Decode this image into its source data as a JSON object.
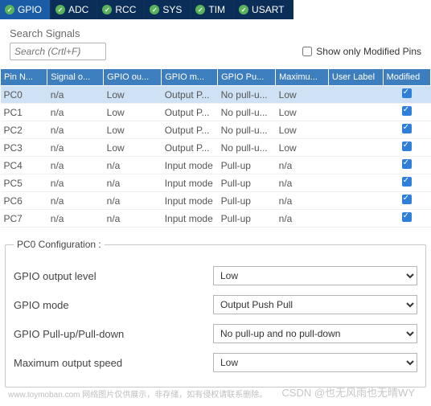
{
  "tabs": {
    "items": [
      {
        "label": "GPIO",
        "active": true
      },
      {
        "label": "ADC",
        "active": false
      },
      {
        "label": "RCC",
        "active": false
      },
      {
        "label": "SYS",
        "active": false
      },
      {
        "label": "TIM",
        "active": false
      },
      {
        "label": "USART",
        "active": false
      }
    ]
  },
  "search": {
    "label": "Search Signals",
    "placeholder": "Search (Crtl+F)",
    "show_only_label": "Show only Modified Pins",
    "show_only_checked": false
  },
  "table": {
    "columns": [
      "Pin N...",
      "Signal o...",
      "GPIO ou...",
      "GPIO m...",
      "GPIO Pu...",
      "Maximu...",
      "User Label",
      "Modified"
    ],
    "rows": [
      {
        "pin": "PC0",
        "signal": "n/a",
        "out": "Low",
        "mode": "Output P...",
        "pull": "No pull-u...",
        "max": "Low",
        "user": "",
        "modified": true,
        "selected": true
      },
      {
        "pin": "PC1",
        "signal": "n/a",
        "out": "Low",
        "mode": "Output P...",
        "pull": "No pull-u...",
        "max": "Low",
        "user": "",
        "modified": true,
        "selected": false
      },
      {
        "pin": "PC2",
        "signal": "n/a",
        "out": "Low",
        "mode": "Output P...",
        "pull": "No pull-u...",
        "max": "Low",
        "user": "",
        "modified": true,
        "selected": false
      },
      {
        "pin": "PC3",
        "signal": "n/a",
        "out": "Low",
        "mode": "Output P...",
        "pull": "No pull-u...",
        "max": "Low",
        "user": "",
        "modified": true,
        "selected": false
      },
      {
        "pin": "PC4",
        "signal": "n/a",
        "out": "n/a",
        "mode": "Input mode",
        "pull": "Pull-up",
        "max": "n/a",
        "user": "",
        "modified": true,
        "selected": false
      },
      {
        "pin": "PC5",
        "signal": "n/a",
        "out": "n/a",
        "mode": "Input mode",
        "pull": "Pull-up",
        "max": "n/a",
        "user": "",
        "modified": true,
        "selected": false
      },
      {
        "pin": "PC6",
        "signal": "n/a",
        "out": "n/a",
        "mode": "Input mode",
        "pull": "Pull-up",
        "max": "n/a",
        "user": "",
        "modified": true,
        "selected": false
      },
      {
        "pin": "PC7",
        "signal": "n/a",
        "out": "n/a",
        "mode": "Input mode",
        "pull": "Pull-up",
        "max": "n/a",
        "user": "",
        "modified": true,
        "selected": false
      }
    ]
  },
  "config": {
    "legend": "PC0 Configuration :",
    "fields": [
      {
        "label": "GPIO output level",
        "value": "Low"
      },
      {
        "label": "GPIO mode",
        "value": "Output Push Pull"
      },
      {
        "label": "GPIO Pull-up/Pull-down",
        "value": "No pull-up and no pull-down"
      },
      {
        "label": "Maximum output speed",
        "value": "Low"
      }
    ]
  },
  "watermark1": "www.toymoban.com 网络图片仅供展示，非存储，如有侵权请联系删除。",
  "watermark2": "CSDN @也无风雨也无晴WY",
  "colors": {
    "tab_bg": "#0b2e58",
    "tab_active": "#1a5da6",
    "header_bg": "#3d7ebf",
    "row_selected": "#cfe2f5",
    "check_green": "#5ab35a",
    "check_blue": "#2f7ed8"
  }
}
